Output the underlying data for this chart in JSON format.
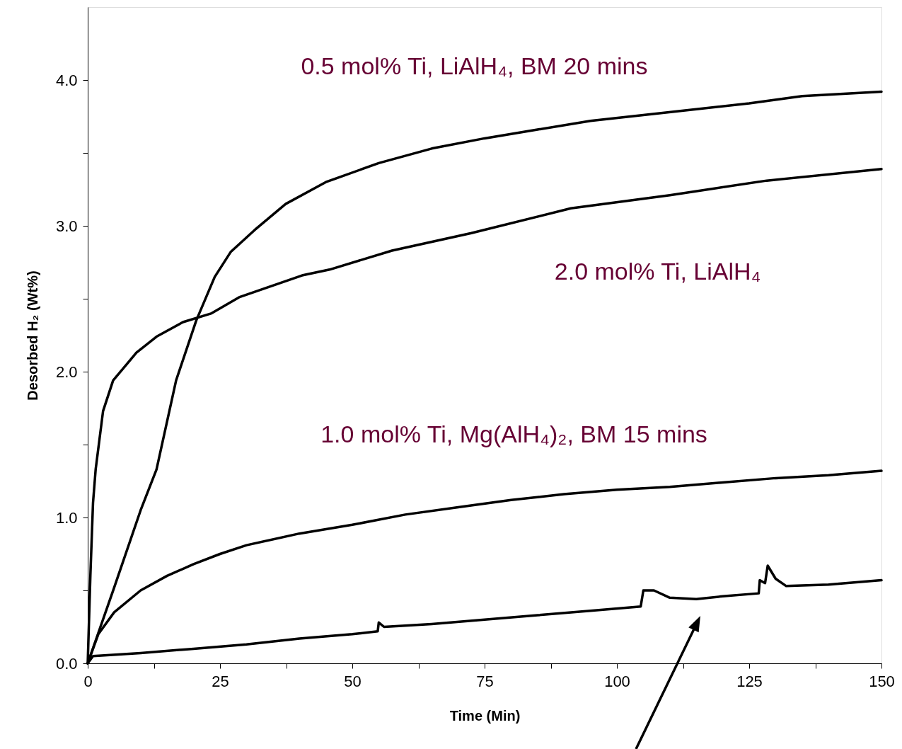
{
  "chart_data": {
    "type": "line",
    "xlabel": "Time (Min)",
    "ylabel": "Desorbed H₂ (Wt%)",
    "xlim": [
      0,
      150
    ],
    "ylim": [
      0,
      4.5
    ],
    "xticks": [
      0,
      {
        "value": 12.5,
        "label": null
      },
      25,
      {
        "value": 37.5,
        "label": null
      },
      50,
      {
        "value": 62.5,
        "label": null
      },
      75,
      {
        "value": 87.5,
        "label": null
      },
      100,
      {
        "value": 112.5,
        "label": null
      },
      125,
      {
        "value": 137.5,
        "label": null
      },
      150
    ],
    "yticks": [
      {
        "value": 0,
        "label": "0.0"
      },
      {
        "value": 0.5,
        "label": null
      },
      {
        "value": 1,
        "label": "1.0"
      },
      {
        "value": 1.5,
        "label": null
      },
      {
        "value": 2,
        "label": "2.0"
      },
      {
        "value": 2.5,
        "label": null
      },
      {
        "value": 3,
        "label": "3.0"
      },
      {
        "value": 3.5,
        "label": null
      },
      {
        "value": 4,
        "label": "4.0"
      }
    ],
    "grid": false,
    "marker": "none",
    "line_style": "solid",
    "annotations": [
      "0.5 mol% Ti, LiAlH₄, BM 20 mins",
      "2.0 mol% Ti, LiAlH₄",
      "1.0 mol% Ti, Mg(AlH₄)₂, BM 15 mins"
    ],
    "series": [
      {
        "color": "#000000",
        "x": [
          0,
          5,
          10,
          13,
          16.7,
          20.5,
          24,
          27,
          31.5,
          37.4,
          45,
          55,
          65,
          75,
          85,
          95,
          105,
          115,
          125,
          135,
          150
        ],
        "values": [
          0,
          0.52,
          1.05,
          1.33,
          1.94,
          2.35,
          2.65,
          2.82,
          2.97,
          3.15,
          3.3,
          3.43,
          3.53,
          3.6,
          3.66,
          3.72,
          3.76,
          3.8,
          3.84,
          3.89,
          3.92
        ]
      },
      {
        "color": "#000000",
        "x": [
          0,
          0.5,
          1,
          1.5,
          2.9,
          4.8,
          9.2,
          13,
          18,
          23.4,
          28.6,
          40.5,
          45.7,
          57.5,
          72.5,
          91.3,
          110,
          128.3,
          150
        ],
        "values": [
          0,
          0.6,
          1.1,
          1.33,
          1.73,
          1.94,
          2.13,
          2.24,
          2.34,
          2.4,
          2.51,
          2.66,
          2.7,
          2.83,
          2.95,
          3.12,
          3.21,
          3.31,
          3.39
        ]
      },
      {
        "color": "#000000",
        "x": [
          0,
          2,
          5,
          10,
          15,
          20,
          25,
          30,
          40,
          50,
          60,
          70,
          80,
          90,
          100,
          110,
          120,
          130,
          140,
          150
        ],
        "values": [
          0,
          0.2,
          0.35,
          0.5,
          0.6,
          0.68,
          0.75,
          0.81,
          0.89,
          0.95,
          1.02,
          1.07,
          1.12,
          1.16,
          1.19,
          1.21,
          1.24,
          1.27,
          1.29,
          1.32
        ]
      },
      {
        "color": "#000000",
        "x": [
          0,
          1,
          10,
          20,
          30,
          40,
          50,
          54.8,
          55,
          56,
          65,
          75,
          85,
          95,
          104.5,
          105,
          107,
          110,
          115,
          120,
          126.8,
          127,
          128,
          128.5,
          130,
          132,
          140,
          150
        ],
        "values": [
          0,
          0.05,
          0.07,
          0.1,
          0.13,
          0.17,
          0.2,
          0.22,
          0.28,
          0.25,
          0.27,
          0.3,
          0.33,
          0.36,
          0.39,
          0.5,
          0.5,
          0.45,
          0.44,
          0.46,
          0.48,
          0.57,
          0.55,
          0.67,
          0.58,
          0.53,
          0.54,
          0.57
        ]
      }
    ]
  }
}
